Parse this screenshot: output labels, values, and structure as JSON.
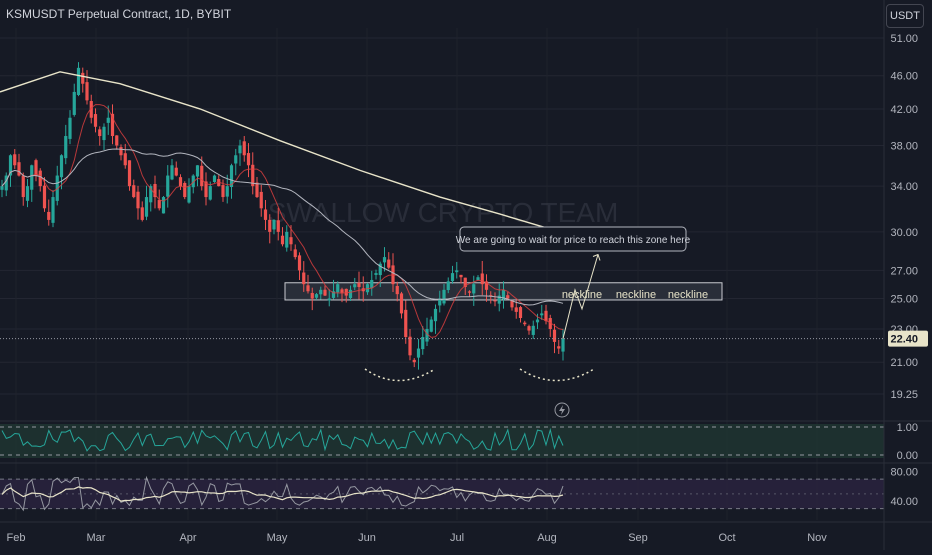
{
  "header": {
    "title": "KSMUSDT Perpetual Contract, 1D, BYBIT",
    "currency_label": "USDT"
  },
  "colors": {
    "background": "#161a25",
    "up_candle": "#26a69a",
    "down_candle": "#ef5350",
    "ma_long": "#e8e4c9",
    "ma_short": "#b2b5be",
    "ema": "#e04040",
    "axis_text": "#b2b5be",
    "pane_fill": "#1f3531",
    "rsi_fill": "#2a2340",
    "rsi_line": "#9598a1",
    "rsi_ma": "#e8e4c9"
  },
  "watermark": "SWALLOW CRYPTO TEAM",
  "annotation": {
    "callout": "We are going to wait for price to reach this zone here",
    "neckline_labels": [
      "neckline",
      "neckline",
      "neckline"
    ]
  },
  "current_price": "22.40",
  "chart_data": {
    "type": "candlestick",
    "price_axis": {
      "ticks": [
        "51.00",
        "46.00",
        "42.00",
        "38.00",
        "34.00",
        "30.00",
        "27.00",
        "25.00",
        "23.00",
        "21.00",
        "19.25"
      ],
      "scale": "log"
    },
    "time_axis": {
      "labels": [
        "Feb",
        "Mar",
        "Apr",
        "May",
        "Jun",
        "Jul",
        "Aug",
        "Sep",
        "Oct",
        "Nov"
      ]
    },
    "zone": {
      "low": 24.9,
      "high": 26.1
    },
    "candles_approx_close": [
      34,
      35,
      37,
      36,
      35,
      33,
      34,
      36,
      35,
      34,
      32,
      31,
      33,
      35,
      37,
      39,
      41,
      44,
      47,
      45,
      43,
      41,
      40,
      39,
      40,
      41,
      39,
      38,
      37,
      36,
      34,
      33,
      32,
      31,
      33,
      34,
      33,
      32,
      33,
      35,
      36,
      35,
      34,
      33,
      34,
      35,
      36,
      34,
      33,
      34,
      35,
      34,
      33,
      34,
      36,
      37,
      38,
      37,
      36,
      34,
      33,
      32,
      31,
      30,
      31,
      30,
      29,
      30,
      29,
      28,
      27,
      26,
      25.5,
      25,
      25.3,
      25.6,
      25.2,
      25,
      25.5,
      26,
      25.4,
      25.2,
      25.6,
      26,
      25.8,
      25.5,
      26,
      26.3,
      26.8,
      27.5,
      28,
      27.2,
      26,
      25.3,
      24,
      22.5,
      21.4,
      21,
      21.8,
      22.5,
      23,
      23.6,
      24.3,
      25,
      25.6,
      26.2,
      26.8,
      27,
      26.5,
      25.8,
      25.4,
      26,
      26.5,
      26,
      25.6,
      25.2,
      24.8,
      25.2,
      25.6,
      25,
      24.4,
      24.1,
      23.7,
      23.3,
      22.9,
      23.2,
      23.6,
      24,
      23.5,
      23,
      22.2,
      21.8,
      22.4
    ],
    "oscillator_1": {
      "ticks": [
        "1.00",
        "0.00"
      ],
      "range": [
        0,
        1
      ]
    },
    "oscillator_2": {
      "ticks": [
        "80.00",
        "40.00"
      ],
      "range": [
        20,
        85
      ]
    }
  }
}
